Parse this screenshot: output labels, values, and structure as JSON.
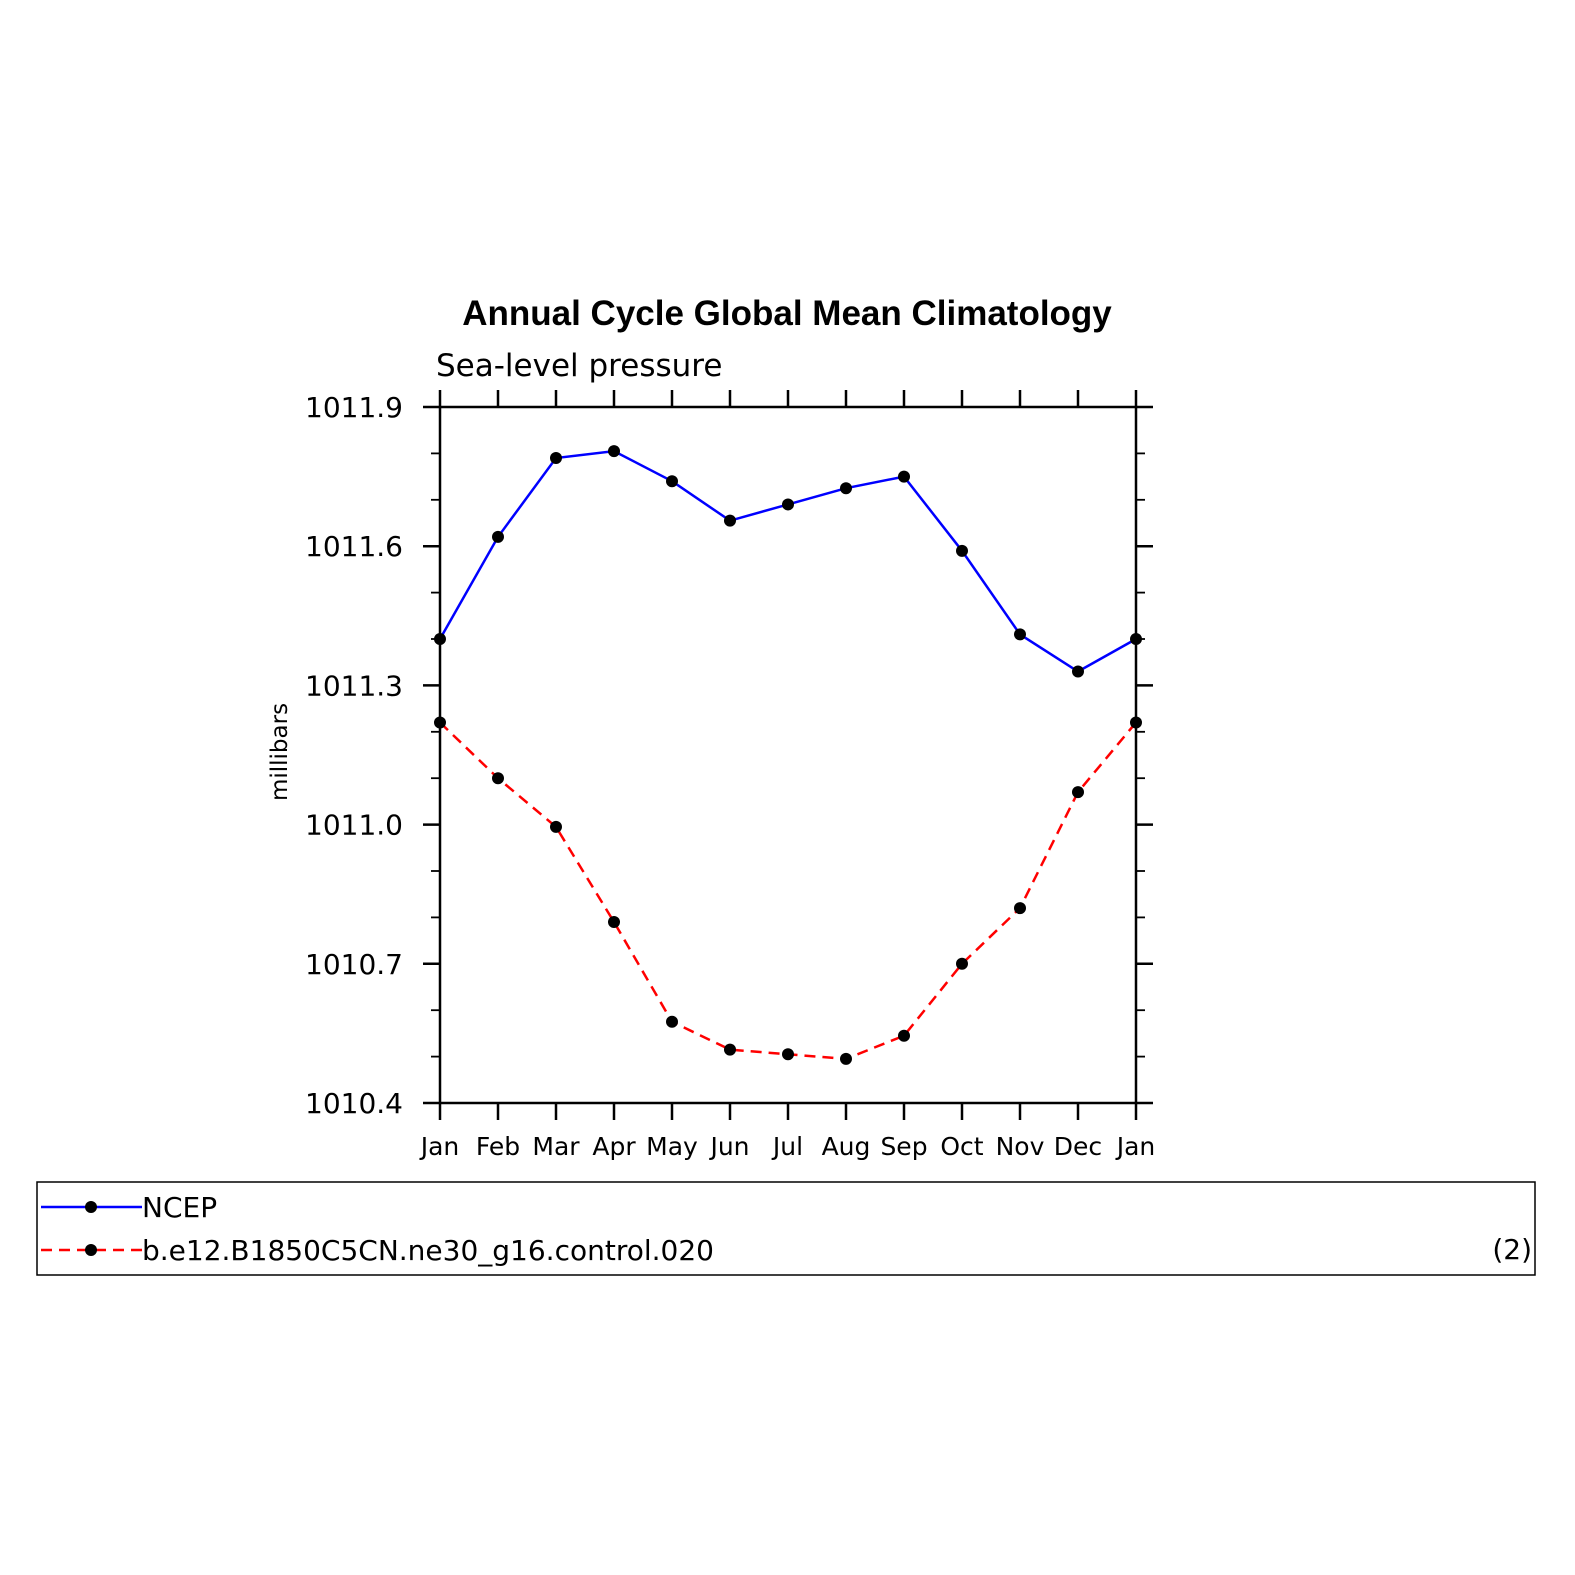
{
  "chart_data": {
    "type": "line",
    "title": "Annual Cycle Global Mean Climatology",
    "subtitle": "Sea-level pressure",
    "xlabel": "",
    "ylabel": "millibars",
    "categories": [
      "Jan",
      "Feb",
      "Mar",
      "Apr",
      "May",
      "Jun",
      "Jul",
      "Aug",
      "Sep",
      "Oct",
      "Nov",
      "Dec",
      "Jan"
    ],
    "ylim": [
      1010.4,
      1011.9
    ],
    "yticks": [
      "1010.4",
      "1010.7",
      "1011.0",
      "1011.3",
      "1011.6",
      "1011.9"
    ],
    "ytick_values": [
      1010.4,
      1010.7,
      1011.0,
      1011.3,
      1011.6,
      1011.9
    ],
    "series": [
      {
        "name": "NCEP",
        "color": "#0000ff",
        "dash": "solid",
        "values": [
          1011.4,
          1011.62,
          1011.79,
          1011.805,
          1011.74,
          1011.655,
          1011.69,
          1011.725,
          1011.75,
          1011.59,
          1011.41,
          1011.33,
          1011.4
        ]
      },
      {
        "name": "b.e12.B1850C5CN.ne30_g16.control.020",
        "color": "#ff0000",
        "dash": "dashed",
        "values": [
          1011.22,
          1011.1,
          1010.995,
          1010.79,
          1010.575,
          1010.515,
          1010.505,
          1010.495,
          1010.545,
          1010.7,
          1010.82,
          1011.07,
          1011.22
        ]
      }
    ],
    "legend_position": "bottom",
    "legend_note": "(2)",
    "grid": false
  }
}
